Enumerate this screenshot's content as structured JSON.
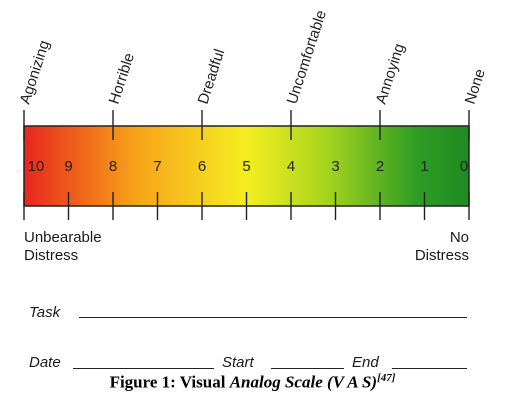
{
  "descriptors": [
    "Agonizing",
    "Horrible",
    "Dreadful",
    "Uncomfortable",
    "Annoying",
    "None"
  ],
  "scale_numbers": [
    "10",
    "9",
    "8",
    "7",
    "6",
    "5",
    "4",
    "3",
    "2",
    "1",
    "0"
  ],
  "colors": {
    "gradient": [
      "#e8261e",
      "#f7a21a",
      "#f5ee20",
      "#a6d41e",
      "#2f9d24",
      "#1f8a22"
    ],
    "border": "#222222"
  },
  "left_label": {
    "line1": "Unbearable",
    "line2": "Distress"
  },
  "right_label": {
    "line1": "No",
    "line2": "Distress"
  },
  "form": {
    "task_label": "Task",
    "date_label": "Date",
    "start_label": "Start",
    "end_label": "End"
  },
  "caption": {
    "bold_part": "Figure 1: Visual ",
    "italic_part": "Analog Scale (V A S)",
    "ref": "[47]"
  }
}
